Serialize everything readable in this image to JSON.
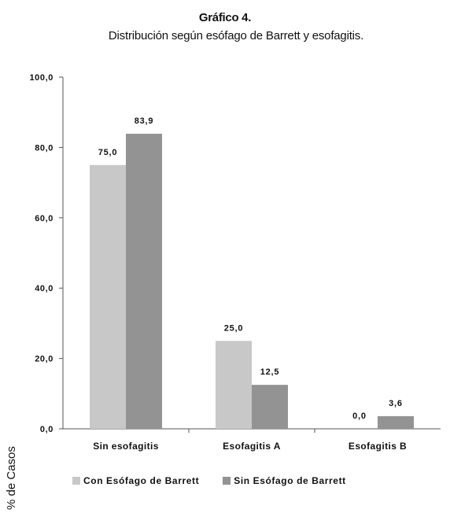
{
  "chart_data": {
    "type": "bar",
    "title": "Gráfico 4.",
    "subtitle": "Distribución según esófago de Barrett y esofagitis.",
    "xlabel": "",
    "ylabel": "% de Casos",
    "ylim": [
      0,
      100
    ],
    "yticks": [
      "0,0",
      "20,0",
      "40,0",
      "60,0",
      "80,0",
      "100,0"
    ],
    "ytick_values": [
      0,
      20,
      40,
      60,
      80,
      100
    ],
    "categories": [
      "Sin esofagitis",
      "Esofagitis A",
      "Esofagitis B"
    ],
    "series": [
      {
        "name": "Con Esófago de Barrett",
        "values": [
          75.0,
          25.0,
          0.0
        ],
        "labels": [
          "75,0",
          "25,0",
          "0,0"
        ],
        "color": "#c8c8c8"
      },
      {
        "name": "Sin Esófago de Barrett",
        "values": [
          83.9,
          12.5,
          3.6
        ],
        "labels": [
          "83,9",
          "12,5",
          "3,6"
        ],
        "color": "#939393"
      }
    ],
    "grid": false,
    "legend_position": "bottom"
  }
}
